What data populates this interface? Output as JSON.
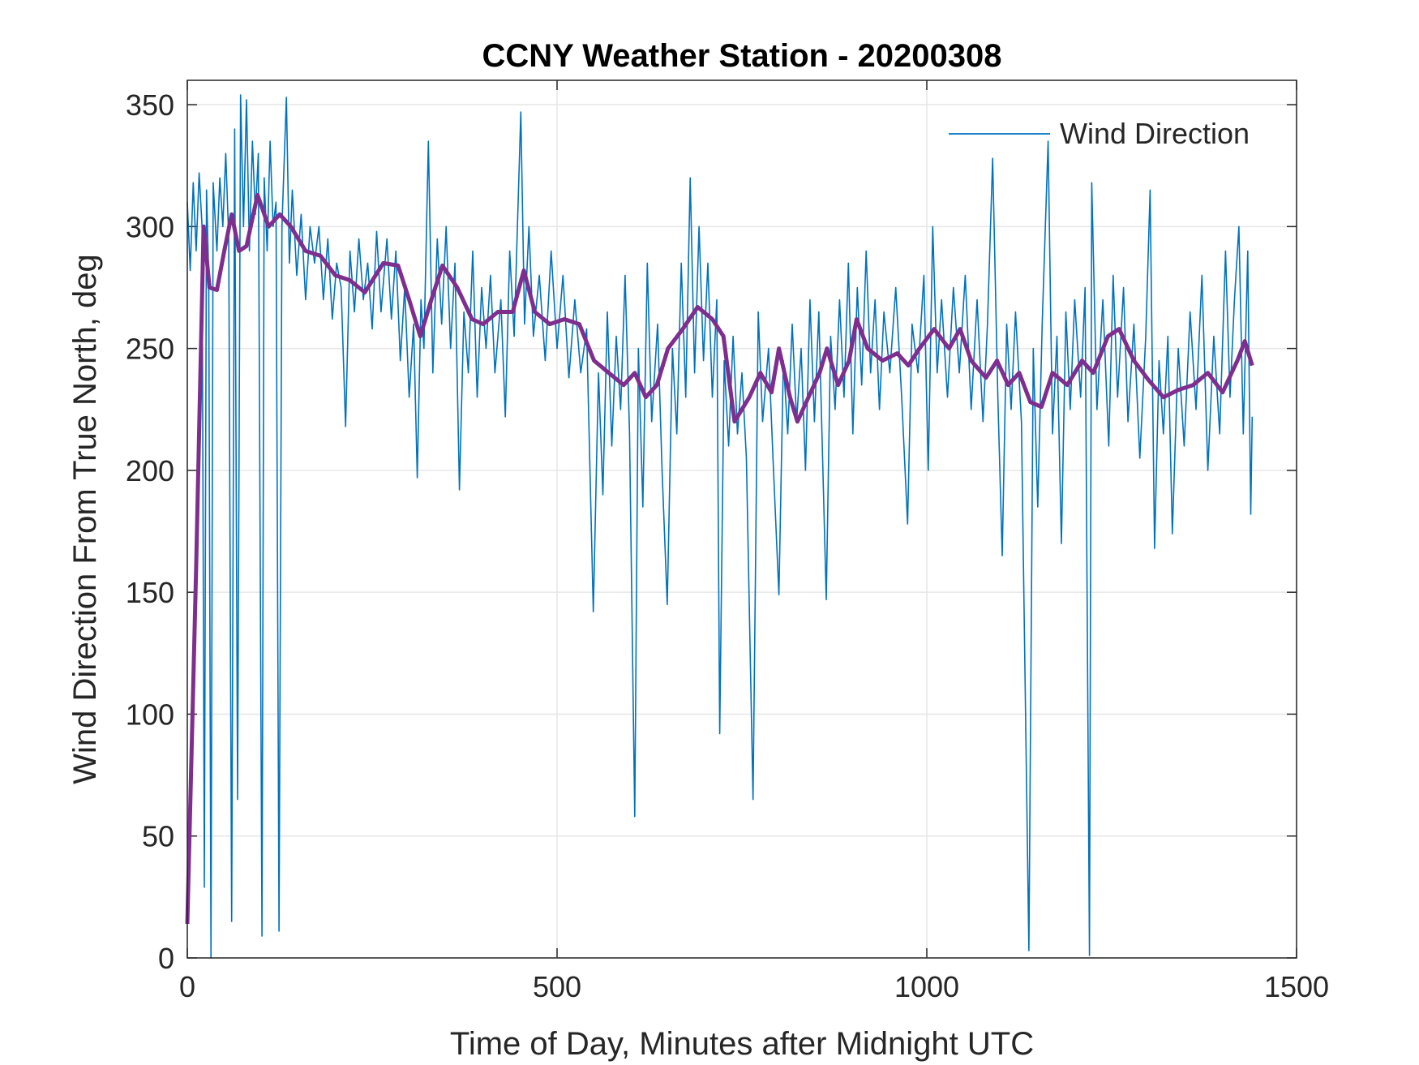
{
  "chart_data": {
    "type": "line",
    "title": "CCNY Weather Station - 20200308",
    "xlabel": "Time of Day, Minutes after Midnight UTC",
    "ylabel": "Wind Direction From True North, deg",
    "xlim": [
      0,
      1500
    ],
    "xticks": [
      0,
      500,
      1000,
      1500
    ],
    "ylim": [
      0,
      360
    ],
    "yticks": [
      0,
      50,
      100,
      150,
      200,
      250,
      300,
      350
    ],
    "grid": true,
    "legend": "northeast",
    "series": [
      {
        "name": "Wind Direction",
        "color": "#0072bd",
        "x": [
          0,
          4,
          8,
          12,
          16,
          20,
          23,
          26,
          29,
          32,
          35,
          40,
          44,
          48,
          52,
          56,
          60,
          64,
          68,
          72,
          76,
          80,
          84,
          88,
          92,
          96,
          101,
          104,
          108,
          112,
          116,
          120,
          124,
          128,
          134,
          138,
          142,
          148,
          154,
          160,
          166,
          172,
          178,
          184,
          190,
          196,
          202,
          208,
          214,
          220,
          226,
          232,
          238,
          244,
          250,
          256,
          262,
          270,
          276,
          282,
          288,
          294,
          300,
          306,
          311,
          316,
          320,
          326,
          332,
          338,
          344,
          350,
          356,
          362,
          368,
          374,
          380,
          386,
          392,
          398,
          404,
          410,
          416,
          424,
          430,
          436,
          442,
          451,
          456,
          462,
          468,
          476,
          484,
          492,
          500,
          508,
          516,
          524,
          532,
          540,
          549,
          556,
          562,
          568,
          574,
          580,
          586,
          592,
          598,
          605,
          610,
          616,
          622,
          628,
          636,
          642,
          649,
          656,
          662,
          668,
          674,
          680,
          686,
          692,
          698,
          704,
          710,
          716,
          720,
          726,
          732,
          738,
          744,
          750,
          756,
          765,
          772,
          778,
          786,
          792,
          800,
          806,
          812,
          818,
          824,
          830,
          836,
          842,
          848,
          854,
          864,
          870,
          876,
          882,
          888,
          894,
          900,
          906,
          912,
          918,
          924,
          930,
          936,
          942,
          950,
          958,
          966,
          974,
          980,
          988,
          996,
          1002,
          1008,
          1014,
          1020,
          1028,
          1036,
          1044,
          1052,
          1060,
          1068,
          1076,
          1082,
          1089,
          1096,
          1102,
          1108,
          1114,
          1120,
          1128,
          1138,
          1144,
          1150,
          1156,
          1164,
          1170,
          1176,
          1182,
          1188,
          1194,
          1200,
          1208,
          1214,
          1220,
          1223,
          1230,
          1238,
          1246,
          1252,
          1258,
          1266,
          1272,
          1280,
          1288,
          1296,
          1302,
          1308,
          1314,
          1320,
          1326,
          1332,
          1340,
          1348,
          1356,
          1364,
          1372,
          1380,
          1388,
          1396,
          1404,
          1410,
          1416,
          1422,
          1428,
          1434,
          1438,
          1440
        ],
        "values": [
          310,
          282,
          318,
          290,
          322,
          300,
          29,
          315,
          280,
          0,
          318,
          290,
          320,
          300,
          330,
          295,
          15,
          340,
          65,
          354,
          300,
          352,
          290,
          335,
          305,
          330,
          9,
          320,
          290,
          335,
          300,
          310,
          11,
          300,
          353,
          285,
          315,
          280,
          305,
          270,
          300,
          285,
          300,
          270,
          295,
          262,
          285,
          275,
          218,
          290,
          265,
          295,
          270,
          285,
          258,
          298,
          265,
          295,
          262,
          290,
          245,
          275,
          230,
          260,
          197,
          270,
          250,
          335,
          240,
          295,
          260,
          300,
          250,
          285,
          192,
          265,
          240,
          290,
          230,
          275,
          250,
          280,
          240,
          270,
          222,
          290,
          255,
          347,
          260,
          300,
          255,
          280,
          245,
          290,
          250,
          280,
          238,
          270,
          240,
          258,
          142,
          240,
          190,
          265,
          210,
          255,
          225,
          280,
          215,
          58,
          250,
          185,
          285,
          220,
          260,
          200,
          145,
          250,
          215,
          285,
          230,
          320,
          240,
          300,
          245,
          285,
          230,
          270,
          92,
          245,
          210,
          255,
          215,
          240,
          205,
          65,
          265,
          220,
          250,
          205,
          149,
          245,
          215,
          260,
          220,
          250,
          200,
          270,
          220,
          265,
          147,
          255,
          225,
          270,
          230,
          285,
          215,
          275,
          235,
          290,
          240,
          270,
          225,
          265,
          240,
          275,
          230,
          178,
          260,
          240,
          280,
          200,
          300,
          240,
          270,
          230,
          275,
          240,
          280,
          225,
          270,
          220,
          260,
          328,
          230,
          165,
          260,
          225,
          265,
          220,
          3,
          250,
          185,
          260,
          335,
          215,
          255,
          170,
          265,
          225,
          270,
          230,
          275,
          1,
          318,
          225,
          270,
          210,
          280,
          230,
          275,
          220,
          260,
          205,
          255,
          315,
          168,
          245,
          215,
          255,
          174,
          250,
          210,
          265,
          225,
          280,
          200,
          255,
          215,
          290,
          230,
          270,
          300,
          215,
          290,
          182,
          222
        ]
      },
      {
        "color": "#7e2f8e",
        "x": [
          0,
          12,
          22,
          30,
          40,
          50,
          60,
          70,
          80,
          95,
          110,
          125,
          140,
          160,
          180,
          200,
          220,
          240,
          265,
          285,
          300,
          315,
          330,
          345,
          365,
          385,
          400,
          420,
          440,
          455,
          470,
          490,
          510,
          530,
          550,
          570,
          590,
          605,
          620,
          635,
          650,
          670,
          690,
          710,
          725,
          740,
          760,
          775,
          790,
          800,
          815,
          825,
          840,
          855,
          865,
          880,
          895,
          905,
          920,
          940,
          960,
          975,
          990,
          1010,
          1030,
          1045,
          1060,
          1080,
          1095,
          1110,
          1125,
          1140,
          1155,
          1170,
          1190,
          1210,
          1225,
          1245,
          1260,
          1280,
          1300,
          1320,
          1340,
          1360,
          1380,
          1400,
          1420,
          1430,
          1440
        ],
        "values": [
          14,
          160,
          300,
          275,
          274,
          290,
          305,
          290,
          292,
          313,
          300,
          305,
          300,
          290,
          288,
          280,
          278,
          273,
          285,
          284,
          270,
          255,
          270,
          284,
          275,
          262,
          260,
          265,
          265,
          282,
          265,
          260,
          262,
          260,
          245,
          240,
          235,
          240,
          230,
          235,
          250,
          258,
          267,
          262,
          255,
          220,
          230,
          240,
          232,
          250,
          230,
          220,
          230,
          240,
          250,
          235,
          245,
          262,
          250,
          245,
          248,
          243,
          250,
          258,
          250,
          258,
          245,
          238,
          245,
          235,
          240,
          228,
          226,
          240,
          235,
          245,
          240,
          255,
          258,
          245,
          237,
          230,
          233,
          235,
          240,
          232,
          245,
          253,
          243
        ]
      }
    ]
  }
}
